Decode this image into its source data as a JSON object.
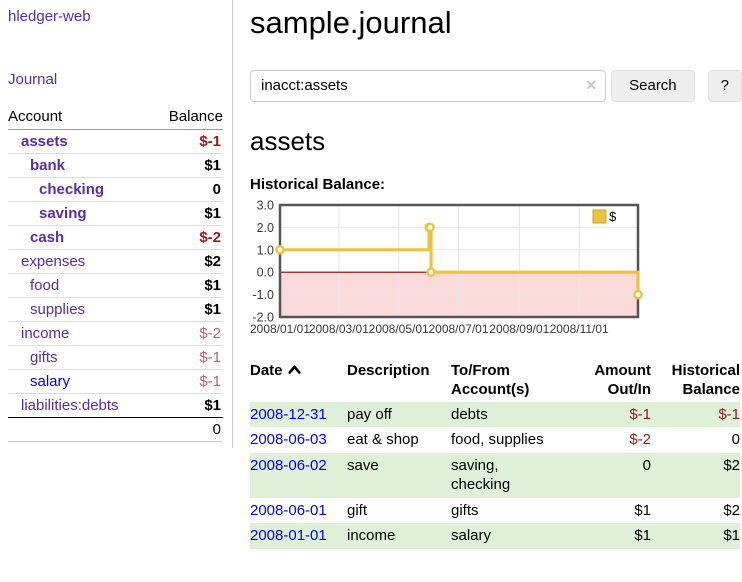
{
  "app_title": "hledger-web",
  "sidebar": {
    "journal_link": "Journal",
    "accounts": {
      "header_account": "Account",
      "header_balance": "Balance",
      "rows": [
        {
          "name": "assets",
          "depth": 1,
          "bold": true,
          "link_color": "purple",
          "balance": "$-1",
          "balance_style": "negative",
          "balance_bold": true
        },
        {
          "name": "bank",
          "depth": 2,
          "bold": true,
          "link_color": "purple",
          "balance": "$1",
          "balance_style": "normal",
          "balance_bold": true
        },
        {
          "name": "checking",
          "depth": 3,
          "bold": true,
          "link_color": "purple",
          "balance": "0",
          "balance_style": "normal",
          "balance_bold": true
        },
        {
          "name": "saving",
          "depth": 3,
          "bold": true,
          "link_color": "purple",
          "balance": "$1",
          "balance_style": "normal",
          "balance_bold": true
        },
        {
          "name": "cash",
          "depth": 2,
          "bold": true,
          "link_color": "purple",
          "balance": "$-2",
          "balance_style": "negative",
          "balance_bold": true
        },
        {
          "name": "expenses",
          "depth": 1,
          "bold": false,
          "link_color": "purple",
          "balance": "$2",
          "balance_style": "normal",
          "balance_bold": true
        },
        {
          "name": "food",
          "depth": 2,
          "bold": false,
          "link_color": "purple",
          "balance": "$1",
          "balance_style": "normal",
          "balance_bold": true
        },
        {
          "name": "supplies",
          "depth": 2,
          "bold": false,
          "link_color": "purple",
          "balance": "$1",
          "balance_style": "normal",
          "balance_bold": true
        },
        {
          "name": "income",
          "depth": 1,
          "bold": false,
          "link_color": "purple",
          "balance": "$-2",
          "balance_style": "negative-muted",
          "balance_bold": false
        },
        {
          "name": "gifts",
          "depth": 2,
          "bold": false,
          "link_color": "purple",
          "balance": "$-1",
          "balance_style": "negative-muted",
          "balance_bold": false
        },
        {
          "name": "salary",
          "depth": 2,
          "bold": false,
          "link_color": "blue",
          "balance": "$-1",
          "balance_style": "negative-muted",
          "balance_bold": false
        },
        {
          "name": "liabilities:debts",
          "depth": 1,
          "bold": false,
          "link_color": "purple",
          "balance": "$1",
          "balance_style": "normal",
          "balance_bold": true
        }
      ],
      "total": "0"
    }
  },
  "main": {
    "title": "sample.journal",
    "search": {
      "value": "inacct:assets",
      "clear_icon": "✕",
      "button_label": "Search",
      "help_label": "?"
    },
    "account_heading": "assets",
    "chart_heading": "Historical Balance:"
  },
  "chart_data": {
    "type": "line",
    "title": "Historical Balance:",
    "series": [
      {
        "name": "$",
        "color": "#EDC240",
        "step": true,
        "points": [
          [
            "2008-01-01",
            1.0
          ],
          [
            "2008-06-01",
            2.0
          ],
          [
            "2008-06-02",
            2.0
          ],
          [
            "2008-06-03",
            0.0
          ],
          [
            "2008-12-31",
            -1.0
          ]
        ]
      }
    ],
    "xlim": [
      "2008-01-01",
      "2008-12-31"
    ],
    "ylim": [
      -2.0,
      3.0
    ],
    "x_tick_labels": [
      "2008/01/01",
      "2008/03/01",
      "2008/05/01",
      "2008/07/01",
      "2008/09/01",
      "2008/11/01"
    ],
    "x_tick_dates": [
      "2008-01-01",
      "2008-03-01",
      "2008-05-01",
      "2008-07-01",
      "2008-09-01",
      "2008-11-01"
    ],
    "y_ticks": [
      3.0,
      2.0,
      1.0,
      0.0,
      -1.0,
      -2.0
    ],
    "legend": {
      "label": "$",
      "position": "top-right"
    },
    "grid": true,
    "negative_region_fill": "#fbdada",
    "zero_line_color": "#8b0000",
    "border_color": "#545454",
    "grid_color": "#e6e6e6"
  },
  "register": {
    "headers": [
      "Date",
      "Description",
      "To/From Account(s)",
      "Amount Out/In",
      "Historical Balance"
    ],
    "sort": {
      "column": "Date",
      "direction": "ascending"
    },
    "rows": [
      {
        "date": "2008-12-31",
        "description": "pay off",
        "accounts": "debts",
        "amount": "$-1",
        "amount_negative": true,
        "balance": "$-1",
        "balance_negative": true
      },
      {
        "date": "2008-06-03",
        "description": "eat & shop",
        "accounts": "food, supplies",
        "amount": "$-2",
        "amount_negative": true,
        "balance": "0",
        "balance_negative": false
      },
      {
        "date": "2008-06-02",
        "description": "save",
        "accounts": "saving, checking",
        "amount": "0",
        "amount_negative": false,
        "balance": "$2",
        "balance_negative": false
      },
      {
        "date": "2008-06-01",
        "description": "gift",
        "accounts": "gifts",
        "amount": "$1",
        "amount_negative": false,
        "balance": "$2",
        "balance_negative": false
      },
      {
        "date": "2008-01-01",
        "description": "income",
        "accounts": "salary",
        "amount": "$1",
        "amount_negative": false,
        "balance": "$1",
        "balance_negative": false
      }
    ]
  }
}
